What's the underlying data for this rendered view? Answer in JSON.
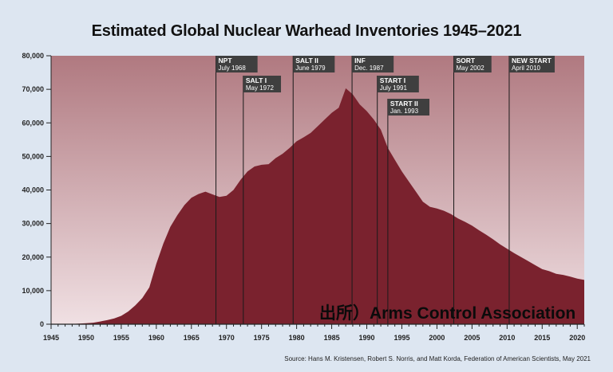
{
  "chart_data": {
    "type": "area",
    "title": "Estimated Global Nuclear Warhead Inventories 1945–2021",
    "xlabel": "",
    "ylabel": "",
    "xlim": [
      1945,
      2021
    ],
    "ylim": [
      0,
      80000
    ],
    "x_ticks": [
      1945,
      1950,
      1955,
      1960,
      1965,
      1970,
      1975,
      1980,
      1985,
      1990,
      1995,
      2000,
      2005,
      2010,
      2015,
      2020
    ],
    "y_ticks": [
      0,
      10000,
      20000,
      30000,
      40000,
      50000,
      60000,
      70000,
      80000
    ],
    "x_tick_labels": [
      "1945",
      "1950",
      "1955",
      "1960",
      "1965",
      "1970",
      "1975",
      "1980",
      "1985",
      "1990",
      "1995",
      "2000",
      "2005",
      "2010",
      "2015",
      "2020"
    ],
    "y_tick_labels": [
      "0",
      "10,000",
      "20,000",
      "30,000",
      "40,000",
      "50,000",
      "60,000",
      "70,000",
      "80,000"
    ],
    "area_color": "#7a222e",
    "background_gradient": [
      "#b07980",
      "#f0e0e3"
    ],
    "series": [
      {
        "x": [
          1945,
          1946,
          1947,
          1948,
          1949,
          1950,
          1951,
          1952,
          1953,
          1954,
          1955,
          1956,
          1957,
          1958,
          1959,
          1960,
          1961,
          1962,
          1963,
          1964,
          1965,
          1966,
          1967,
          1968,
          1969,
          1970,
          1971,
          1972,
          1973,
          1974,
          1975,
          1976,
          1977,
          1978,
          1979,
          1980,
          1981,
          1982,
          1983,
          1984,
          1985,
          1986,
          1987,
          1988,
          1989,
          1990,
          1991,
          1992,
          1993,
          1994,
          1995,
          1996,
          1997,
          1998,
          1999,
          2000,
          2001,
          2002,
          2003,
          2004,
          2005,
          2006,
          2007,
          2008,
          2009,
          2010,
          2011,
          2012,
          2013,
          2014,
          2015,
          2016,
          2017,
          2018,
          2019,
          2020,
          2021
        ],
        "values": [
          2,
          9,
          13,
          50,
          170,
          300,
          450,
          800,
          1200,
          1700,
          2500,
          3800,
          5600,
          7800,
          11000,
          18000,
          24000,
          29000,
          32500,
          35500,
          37700,
          38800,
          39500,
          38700,
          37900,
          38300,
          40000,
          43000,
          45500,
          47000,
          47500,
          47700,
          49500,
          50800,
          52500,
          54500,
          55700,
          57000,
          59000,
          61000,
          63000,
          64500,
          70300,
          68500,
          65500,
          63500,
          61000,
          58000,
          52500,
          49000,
          45500,
          42500,
          39500,
          36500,
          35000,
          34500,
          33800,
          32800,
          31500,
          30500,
          29400,
          28000,
          26700,
          25300,
          23800,
          22500,
          21200,
          20000,
          18800,
          17600,
          16400,
          15800,
          15000,
          14700,
          14200,
          13600,
          13200
        ]
      }
    ],
    "treaties": [
      {
        "name": "NPT",
        "date": "July 1968",
        "year": 1968.5
      },
      {
        "name": "SALT I",
        "date": "May 1972",
        "year": 1972.4
      },
      {
        "name": "SALT II",
        "date": "June 1979",
        "year": 1979.5
      },
      {
        "name": "INF",
        "date": "Dec. 1987",
        "year": 1987.9
      },
      {
        "name": "START I",
        "date": "July 1991",
        "year": 1991.5
      },
      {
        "name": "START II",
        "date": "Jan. 1993",
        "year": 1993.0
      },
      {
        "name": "SORT",
        "date": "May 2002",
        "year": 2002.4
      },
      {
        "name": "NEW START",
        "date": "April 2010",
        "year": 2010.3
      }
    ],
    "source": "Source: Hans M. Kristensen, Robert S. Norris, and Matt Korda, Federation of American Scientists, May 2021"
  },
  "watermark": "出所）Arms Control Association"
}
